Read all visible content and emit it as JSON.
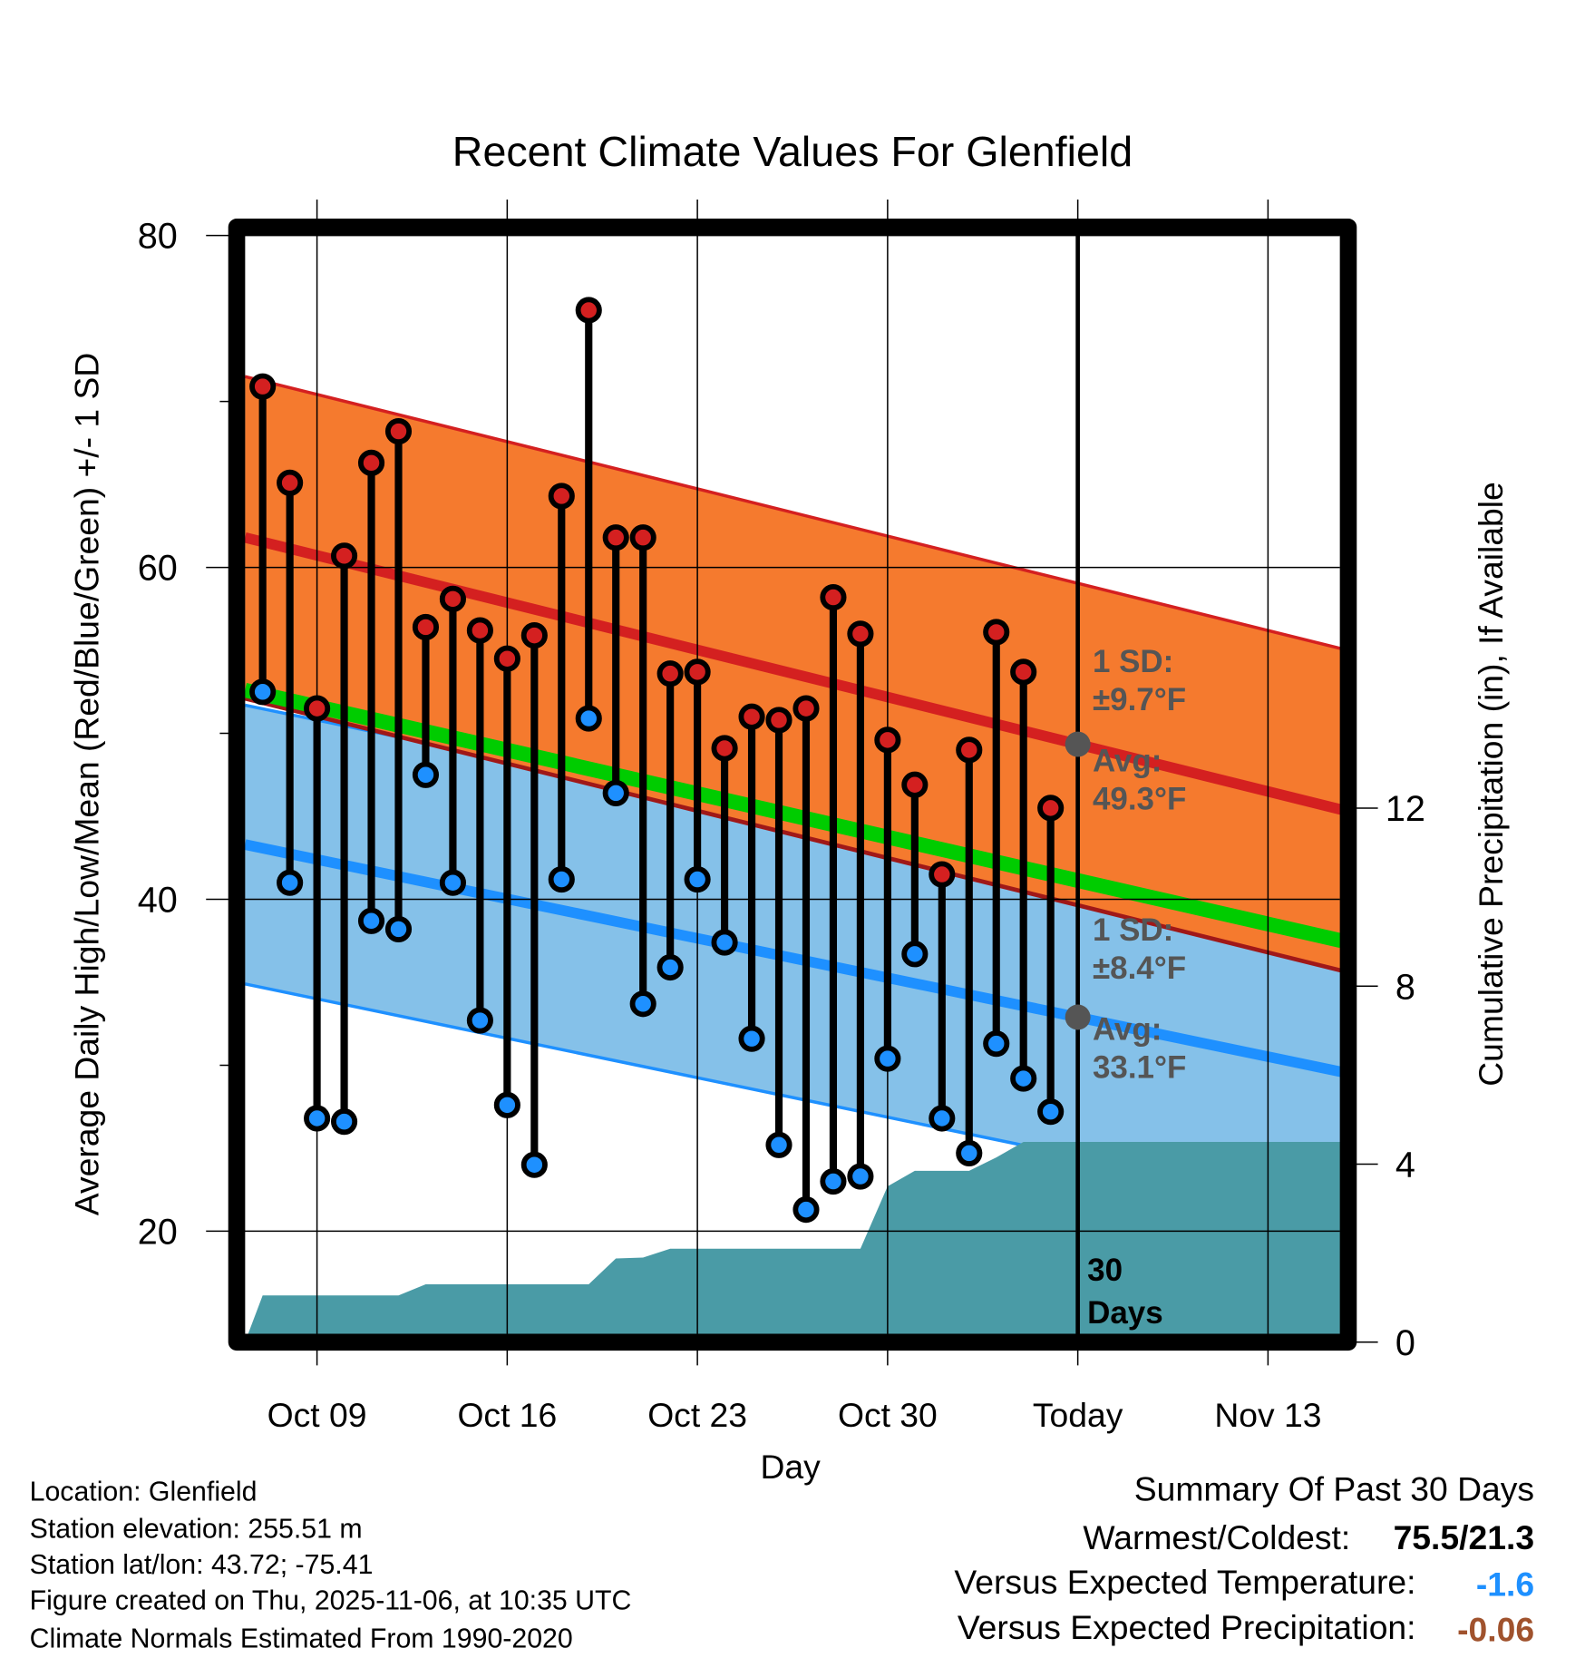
{
  "chart_data": {
    "type": "line",
    "title": "Recent Climate Values For Glenfield",
    "xlabel": "Day",
    "ylabel": "Average Daily High/Low/Mean (Red/Blue/Green) +/- 1 SD",
    "y2label": "Cumulative Precipitation (in), If Available",
    "ylim": [
      13.3,
      80
    ],
    "y2lim": [
      0,
      24.9
    ],
    "yticks": [
      "20",
      "40",
      "60",
      "80"
    ],
    "y2ticks": [
      "0",
      "4",
      "8",
      "12"
    ],
    "xticks": [
      "Oct 09",
      "Oct 16",
      "Oct 23",
      "Oct 30",
      "Today",
      "Nov 13"
    ],
    "xlim_days_from_oct09": [
      -2.65,
      37.7
    ],
    "today_days_from_oct09": 28,
    "dates": [
      "Oct 07",
      "Oct 08",
      "Oct 09",
      "Oct 10",
      "Oct 11",
      "Oct 12",
      "Oct 13",
      "Oct 14",
      "Oct 15",
      "Oct 16",
      "Oct 17",
      "Oct 18",
      "Oct 19",
      "Oct 20",
      "Oct 21",
      "Oct 22",
      "Oct 23",
      "Oct 24",
      "Oct 25",
      "Oct 26",
      "Oct 27",
      "Oct 28",
      "Oct 29",
      "Oct 30",
      "Oct 31",
      "Nov 01",
      "Nov 02",
      "Nov 03",
      "Nov 04",
      "Nov 05"
    ],
    "series": [
      {
        "name": "Daily High",
        "color": "#d42020",
        "values": [
          70.9,
          65.1,
          51.5,
          60.7,
          66.3,
          68.2,
          56.4,
          58.1,
          56.2,
          54.5,
          55.9,
          64.3,
          75.5,
          61.8,
          61.8,
          53.6,
          53.7,
          49.1,
          51.0,
          50.8,
          51.5,
          58.2,
          56.0,
          49.6,
          46.9,
          41.5,
          49.0,
          56.1,
          53.7,
          45.5
        ]
      },
      {
        "name": "Daily Low",
        "color": "#1e90ff",
        "values": [
          52.5,
          41.0,
          26.8,
          26.6,
          38.7,
          38.2,
          47.5,
          41.0,
          32.7,
          27.6,
          24.0,
          41.2,
          50.9,
          46.4,
          33.7,
          35.9,
          41.2,
          37.4,
          31.6,
          25.2,
          21.3,
          23.0,
          23.3,
          30.4,
          36.7,
          26.8,
          24.7,
          31.3,
          29.2,
          27.2
        ]
      }
    ],
    "normals": {
      "high_avg": [
        61.8,
        45.4
      ],
      "high_sd": 9.7,
      "low_avg": [
        43.3,
        29.6
      ],
      "low_sd": 8.4,
      "mean": [
        52.6,
        37.5
      ],
      "span_days_from_oct09": [
        -2.65,
        37.7
      ]
    },
    "precip_cumulative": {
      "days_from_oct09": [
        -2.65,
        -2,
        3,
        4,
        10,
        11,
        12,
        13,
        14,
        20,
        21,
        22,
        24,
        25,
        26,
        37.7
      ],
      "values": [
        0,
        1.05,
        1.05,
        1.3,
        1.3,
        1.88,
        1.9,
        2.1,
        2.1,
        2.1,
        3.5,
        3.85,
        3.85,
        4.15,
        4.5,
        4.5
      ],
      "color": "#4a9ba6"
    },
    "annotations": {
      "high_sd": "1 SD:",
      "high_sd_value": "±9.7°F",
      "high_avg": "Avg:",
      "high_avg_value": "49.3°F",
      "low_sd": "1 SD:",
      "low_sd_value": "±8.4°F",
      "low_avg": "Avg:",
      "low_avg_value": "33.1°F",
      "period_num": "30",
      "period_unit": "Days"
    }
  },
  "info": {
    "location": "Location: Glenfield",
    "elevation": "Station elevation: 255.51 m",
    "latlon": "Station lat/lon: 43.72; -75.41",
    "created": "Figure created on Thu, 2025-11-06, at 10:35 UTC",
    "normals": "Climate Normals Estimated From 1990-2020"
  },
  "summary": {
    "title": "Summary Of Past 30 Days",
    "warm_cold_label": "Warmest/Coldest:",
    "warm_cold_value": "75.5/21.3",
    "temp_label": "Versus Expected Temperature:",
    "temp_value": "-1.6",
    "temp_color": "#1e90ff",
    "precip_label": "Versus Expected Precipitation:",
    "precip_value": "-0.06",
    "precip_color": "#a0522d"
  },
  "colors": {
    "high_band": "#f57a2e",
    "high_line": "#d42020",
    "low_band": "#85c1e9",
    "low_line": "#1e90ff",
    "mean": "#00cc00",
    "precip": "#4a9ba6"
  }
}
